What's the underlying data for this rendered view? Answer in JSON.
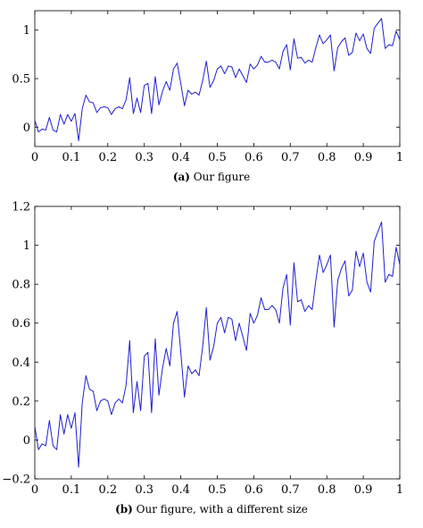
{
  "chart_data": [
    {
      "type": "line",
      "caption_label": "(a)",
      "caption_text": "Our figure",
      "xlim": [
        0,
        1
      ],
      "ylim": [
        -0.2,
        1.2
      ],
      "xticks": [
        0,
        0.1,
        0.2,
        0.3,
        0.4,
        0.5,
        0.6,
        0.7,
        0.8,
        0.9,
        1
      ],
      "xtick_labels": [
        "0",
        "0.1",
        "0.2",
        "0.3",
        "0.4",
        "0.5",
        "0.6",
        "0.7",
        "0.8",
        "0.9",
        "1"
      ],
      "yticks": [
        0,
        0.5,
        1
      ],
      "ytick_labels": [
        "0",
        "0.5",
        "1"
      ],
      "grid": false,
      "line_color": "#1f1fd0",
      "series": [
        {
          "x": [
            0,
            0.01,
            0.02,
            0.03,
            0.04,
            0.05,
            0.06,
            0.07,
            0.08,
            0.09,
            0.1,
            0.11,
            0.12,
            0.13,
            0.14,
            0.15,
            0.16,
            0.17,
            0.18,
            0.19,
            0.2,
            0.21,
            0.22,
            0.23,
            0.24,
            0.25,
            0.26,
            0.27,
            0.28,
            0.29,
            0.3,
            0.31,
            0.32,
            0.33,
            0.34,
            0.35,
            0.36,
            0.37,
            0.38,
            0.39,
            0.4,
            0.41,
            0.42,
            0.43,
            0.44,
            0.45,
            0.46,
            0.47,
            0.48,
            0.49,
            0.5,
            0.51,
            0.52,
            0.53,
            0.54,
            0.55,
            0.56,
            0.57,
            0.58,
            0.59,
            0.6,
            0.61,
            0.62,
            0.63,
            0.64,
            0.65,
            0.66,
            0.67,
            0.68,
            0.69,
            0.7,
            0.71,
            0.72,
            0.73,
            0.74,
            0.75,
            0.76,
            0.77,
            0.78,
            0.79,
            0.8,
            0.81,
            0.82,
            0.83,
            0.84,
            0.85,
            0.86,
            0.87,
            0.88,
            0.89,
            0.9,
            0.91,
            0.92,
            0.93,
            0.94,
            0.95,
            0.96,
            0.97,
            0.98,
            0.99,
            1.0
          ],
          "y": [
            0.07,
            -0.05,
            -0.02,
            -0.03,
            0.1,
            -0.03,
            -0.05,
            0.13,
            0.03,
            0.13,
            0.06,
            0.14,
            -0.14,
            0.19,
            0.33,
            0.26,
            0.25,
            0.15,
            0.2,
            0.21,
            0.2,
            0.13,
            0.19,
            0.21,
            0.19,
            0.28,
            0.51,
            0.14,
            0.3,
            0.15,
            0.43,
            0.45,
            0.14,
            0.52,
            0.23,
            0.37,
            0.47,
            0.38,
            0.6,
            0.66,
            0.45,
            0.22,
            0.38,
            0.34,
            0.36,
            0.33,
            0.48,
            0.68,
            0.41,
            0.48,
            0.6,
            0.63,
            0.55,
            0.63,
            0.62,
            0.51,
            0.6,
            0.53,
            0.46,
            0.65,
            0.6,
            0.64,
            0.73,
            0.67,
            0.67,
            0.69,
            0.67,
            0.6,
            0.78,
            0.85,
            0.59,
            0.91,
            0.71,
            0.72,
            0.66,
            0.69,
            0.67,
            0.82,
            0.95,
            0.86,
            0.9,
            0.95,
            0.58,
            0.82,
            0.88,
            0.92,
            0.74,
            0.77,
            0.97,
            0.89,
            0.96,
            0.81,
            0.76,
            1.02,
            1.07,
            1.12,
            0.81,
            0.85,
            0.84,
            0.99,
            0.9
          ]
        }
      ]
    },
    {
      "type": "line",
      "caption_label": "(b)",
      "caption_text": "Our figure, with a different size",
      "xlim": [
        0,
        1
      ],
      "ylim": [
        -0.2,
        1.2
      ],
      "xticks": [
        0,
        0.1,
        0.2,
        0.3,
        0.4,
        0.5,
        0.6,
        0.7,
        0.8,
        0.9,
        1
      ],
      "xtick_labels": [
        "0",
        "0.1",
        "0.2",
        "0.3",
        "0.4",
        "0.5",
        "0.6",
        "0.7",
        "0.8",
        "0.9",
        "1"
      ],
      "yticks": [
        -0.2,
        0,
        0.2,
        0.4,
        0.6,
        0.8,
        1,
        1.2
      ],
      "ytick_labels": [
        "−0.2",
        "0",
        "0.2",
        "0.4",
        "0.6",
        "0.8",
        "1",
        "1.2"
      ],
      "grid": false,
      "line_color": "#1f1fd0",
      "series": [
        {
          "x": [
            0,
            0.01,
            0.02,
            0.03,
            0.04,
            0.05,
            0.06,
            0.07,
            0.08,
            0.09,
            0.1,
            0.11,
            0.12,
            0.13,
            0.14,
            0.15,
            0.16,
            0.17,
            0.18,
            0.19,
            0.2,
            0.21,
            0.22,
            0.23,
            0.24,
            0.25,
            0.26,
            0.27,
            0.28,
            0.29,
            0.3,
            0.31,
            0.32,
            0.33,
            0.34,
            0.35,
            0.36,
            0.37,
            0.38,
            0.39,
            0.4,
            0.41,
            0.42,
            0.43,
            0.44,
            0.45,
            0.46,
            0.47,
            0.48,
            0.49,
            0.5,
            0.51,
            0.52,
            0.53,
            0.54,
            0.55,
            0.56,
            0.57,
            0.58,
            0.59,
            0.6,
            0.61,
            0.62,
            0.63,
            0.64,
            0.65,
            0.66,
            0.67,
            0.68,
            0.69,
            0.7,
            0.71,
            0.72,
            0.73,
            0.74,
            0.75,
            0.76,
            0.77,
            0.78,
            0.79,
            0.8,
            0.81,
            0.82,
            0.83,
            0.84,
            0.85,
            0.86,
            0.87,
            0.88,
            0.89,
            0.9,
            0.91,
            0.92,
            0.93,
            0.94,
            0.95,
            0.96,
            0.97,
            0.98,
            0.99,
            1.0
          ],
          "y": [
            0.07,
            -0.05,
            -0.02,
            -0.03,
            0.1,
            -0.03,
            -0.05,
            0.13,
            0.03,
            0.13,
            0.06,
            0.14,
            -0.14,
            0.19,
            0.33,
            0.26,
            0.25,
            0.15,
            0.2,
            0.21,
            0.2,
            0.13,
            0.19,
            0.21,
            0.19,
            0.28,
            0.51,
            0.14,
            0.3,
            0.15,
            0.43,
            0.45,
            0.14,
            0.52,
            0.23,
            0.37,
            0.47,
            0.38,
            0.6,
            0.66,
            0.45,
            0.22,
            0.38,
            0.34,
            0.36,
            0.33,
            0.48,
            0.68,
            0.41,
            0.48,
            0.6,
            0.63,
            0.55,
            0.63,
            0.62,
            0.51,
            0.6,
            0.53,
            0.46,
            0.65,
            0.6,
            0.64,
            0.73,
            0.67,
            0.67,
            0.69,
            0.67,
            0.6,
            0.78,
            0.85,
            0.59,
            0.91,
            0.71,
            0.72,
            0.66,
            0.69,
            0.67,
            0.82,
            0.95,
            0.86,
            0.9,
            0.95,
            0.58,
            0.82,
            0.88,
            0.92,
            0.74,
            0.77,
            0.97,
            0.89,
            0.96,
            0.81,
            0.76,
            1.02,
            1.07,
            1.12,
            0.81,
            0.85,
            0.84,
            0.99,
            0.9
          ]
        }
      ]
    }
  ]
}
